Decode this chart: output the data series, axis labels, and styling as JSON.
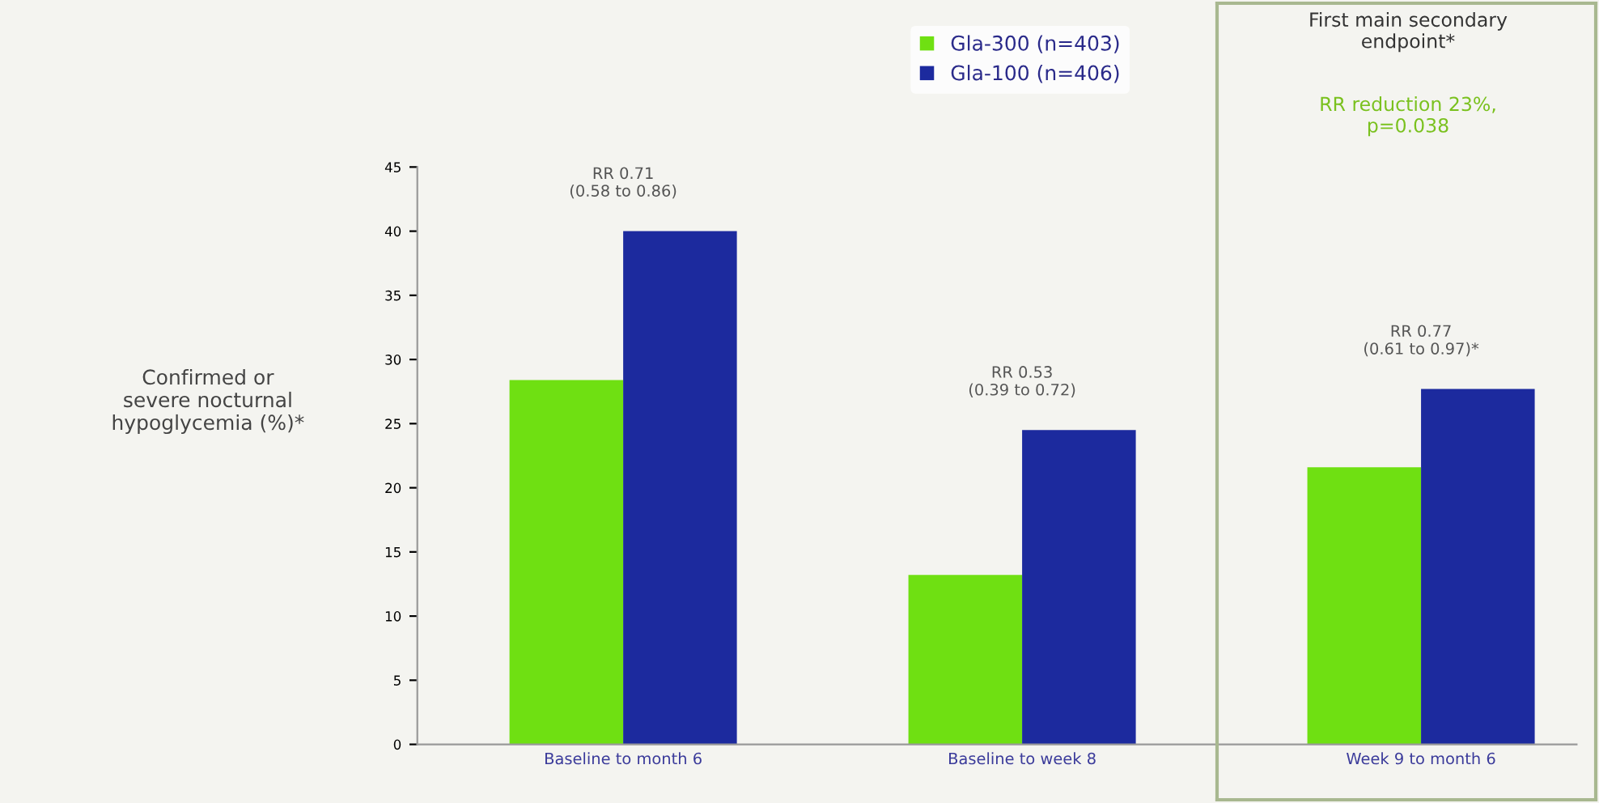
{
  "chart_data": {
    "type": "bar",
    "ylabel": "Confirmed or\nsevere nocturnal\nhypoglycemia (%)*",
    "categories": [
      "Baseline to month 6",
      "Baseline to week 8",
      "Week 9 to month 6"
    ],
    "series": [
      {
        "name": "Gla-300 (n=403)",
        "color": "#6fe012",
        "values": [
          28.4,
          13.2,
          21.6
        ]
      },
      {
        "name": "Gla-100 (n=406)",
        "color": "#1c2a9e",
        "values": [
          40,
          24.5,
          27.7
        ]
      }
    ],
    "ylim": [
      0,
      45
    ],
    "yticks": [
      0,
      5,
      10,
      15,
      20,
      25,
      30,
      35,
      40,
      45
    ],
    "legend": "top",
    "grid": false,
    "annotations": [
      {
        "text": "RR 0.71\n(0.58 to 0.86)",
        "x": "Baseline to month 6",
        "y": 40
      },
      {
        "text": "RR 0.53\n(0.39 to 0.72)",
        "x": "Baseline to week 8",
        "y": 24.5
      },
      {
        "text": "RR 0.77\n(0.61 to 0.97)*",
        "x": "Week 9 to month 6",
        "y": 27.7
      },
      "First main secondary\nendpoint*",
      "RR reduction 23%,\np=0.038"
    ]
  }
}
